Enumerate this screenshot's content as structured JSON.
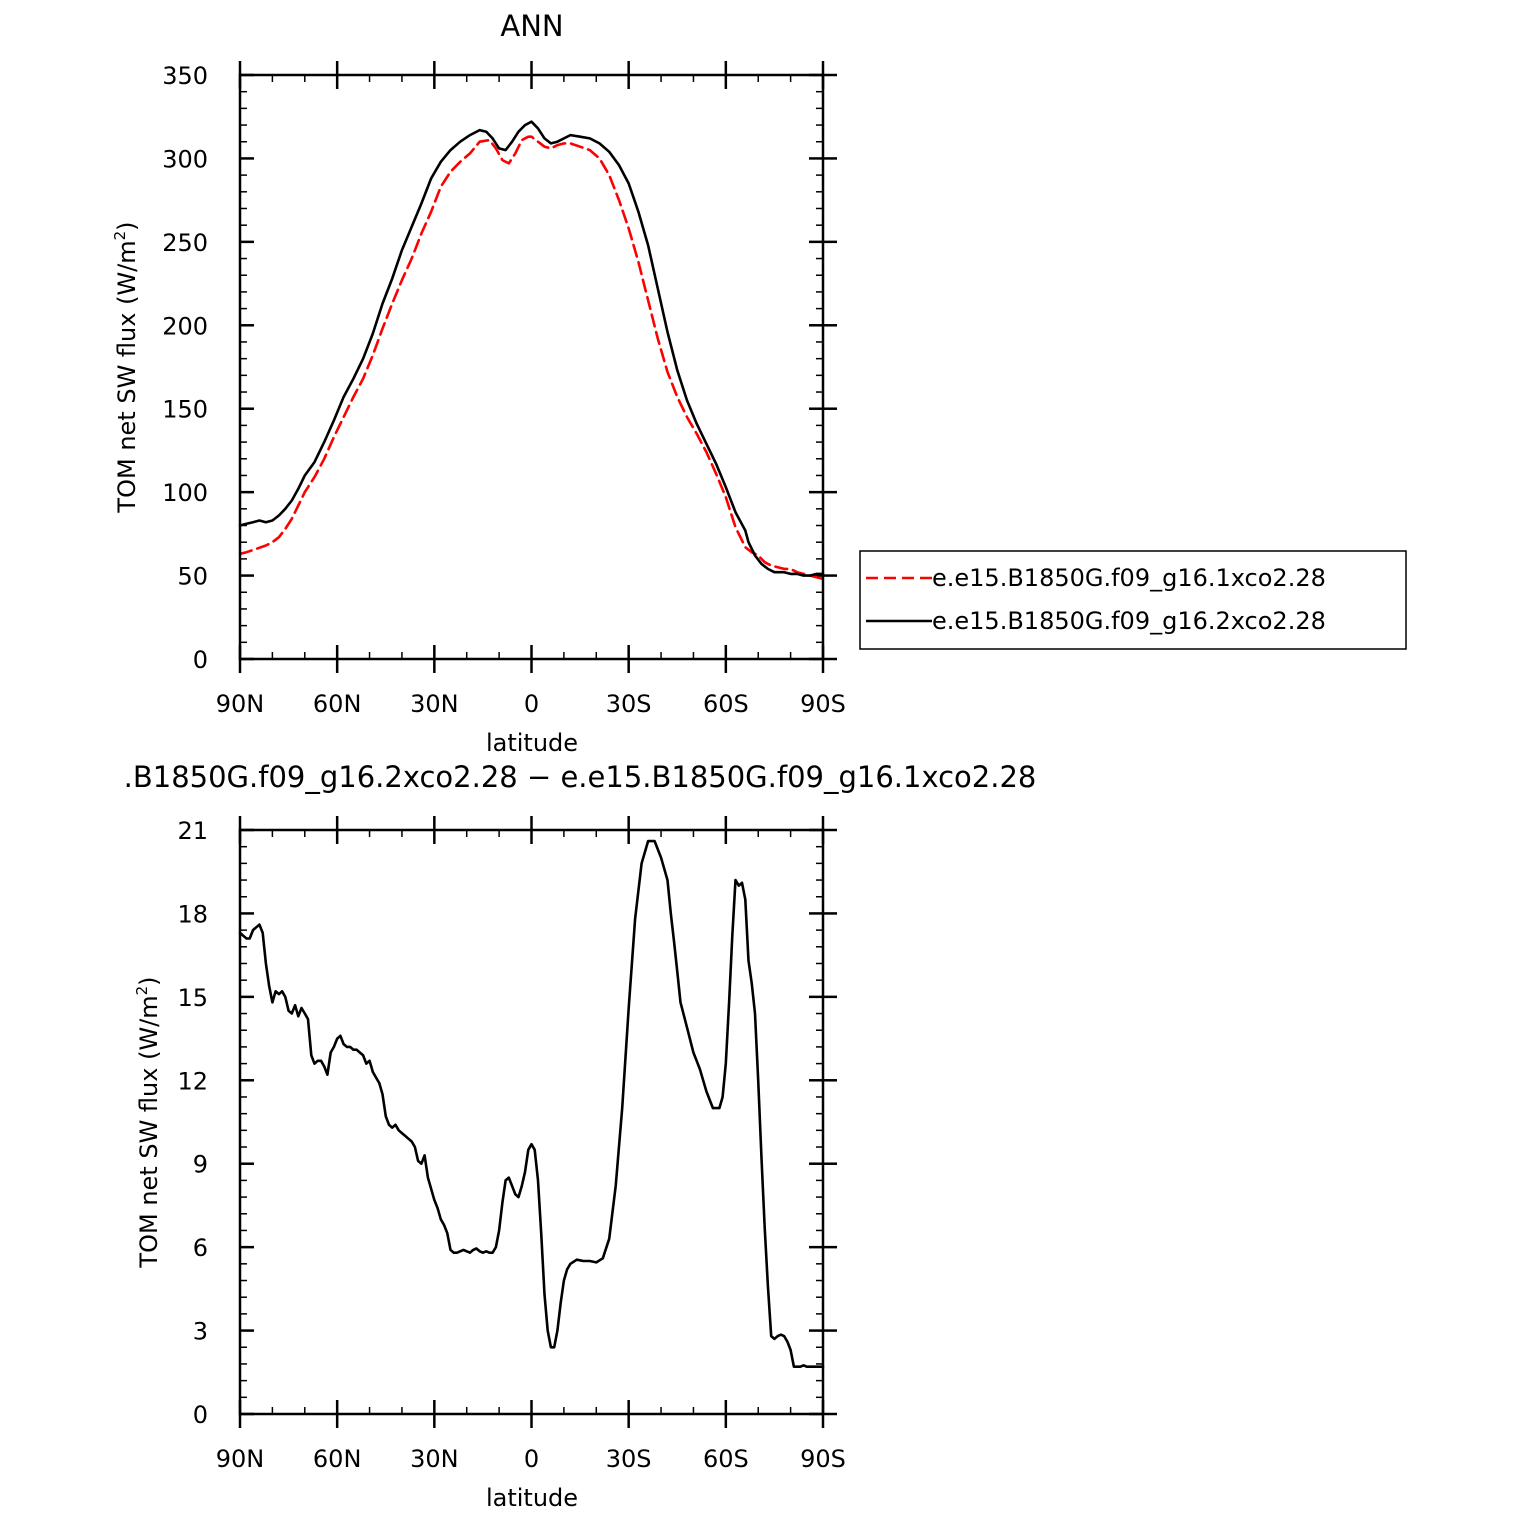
{
  "chart_data": [
    {
      "type": "line",
      "title": "ANN",
      "xlabel": "latitude",
      "ylabel": "TOM net SW flux (W/m",
      "ylabel_sup": "2",
      "ylabel_end": ")",
      "xlim": [
        90,
        -90
      ],
      "ylim": [
        0,
        350
      ],
      "x_ticks": [
        90,
        60,
        30,
        0,
        -30,
        -60,
        -90
      ],
      "x_tick_labels": [
        "90N",
        "60N",
        "30N",
        "0",
        "30S",
        "60S",
        "90S"
      ],
      "y_ticks": [
        0,
        50,
        100,
        150,
        200,
        250,
        300,
        350
      ],
      "y_tick_labels": [
        "0",
        "50",
        "100",
        "150",
        "200",
        "250",
        "300",
        "350"
      ],
      "legend_position": "right",
      "series": [
        {
          "name": "e.e15.B1850G.f09_g16.1xco2.28",
          "color": "#ff0000",
          "dash": "dashed",
          "x": [
            90,
            88,
            85,
            82,
            80,
            78,
            76,
            74,
            72,
            70,
            67,
            64,
            61,
            58,
            55,
            52,
            49,
            46,
            43,
            40,
            37,
            34,
            31,
            28,
            25,
            22,
            19,
            16,
            13,
            11,
            9,
            7,
            5,
            3,
            1,
            0,
            -2,
            -4,
            -6,
            -8,
            -10,
            -12,
            -15,
            -18,
            -21,
            -24,
            -27,
            -30,
            -33,
            -36,
            -39,
            -42,
            -45,
            -48,
            -51,
            -54,
            -57,
            -60,
            -63,
            -66,
            -68,
            -70,
            -72,
            -74,
            -76,
            -78,
            -80,
            -82,
            -84,
            -86,
            -88,
            -90
          ],
          "values": [
            63,
            64,
            66,
            68,
            70,
            73,
            78,
            84,
            92,
            100,
            109,
            120,
            133,
            145,
            157,
            168,
            182,
            198,
            213,
            227,
            240,
            255,
            268,
            283,
            292,
            298,
            303,
            310,
            311,
            306,
            299,
            297,
            303,
            311,
            313,
            313,
            310,
            307,
            306,
            308,
            309,
            309,
            307,
            305,
            300,
            290,
            275,
            258,
            238,
            215,
            192,
            172,
            157,
            145,
            135,
            124,
            111,
            97,
            79,
            67,
            64,
            62,
            58,
            56,
            55,
            54,
            54,
            52,
            51,
            50,
            49,
            48
          ]
        },
        {
          "name": "e.e15.B1850G.f09_g16.2xco2.28",
          "color": "#000000",
          "dash": "solid",
          "x": [
            90,
            88,
            86,
            84,
            82,
            80,
            78,
            76,
            74,
            72,
            70,
            67,
            64,
            61,
            58,
            55,
            52,
            49,
            46,
            43,
            40,
            37,
            34,
            31,
            28,
            25,
            22,
            19,
            16,
            14,
            12,
            10,
            8,
            6,
            4,
            2,
            0,
            -2,
            -4,
            -6,
            -8,
            -10,
            -12,
            -15,
            -18,
            -21,
            -24,
            -27,
            -30,
            -33,
            -36,
            -39,
            -42,
            -45,
            -48,
            -51,
            -54,
            -57,
            -60,
            -63,
            -66,
            -67,
            -69,
            -71,
            -73,
            -75,
            -77,
            -78,
            -80,
            -82,
            -84,
            -86,
            -88,
            -90
          ],
          "values": [
            80,
            81,
            82,
            83,
            82,
            83,
            86,
            90,
            95,
            102,
            110,
            118,
            130,
            143,
            157,
            168,
            180,
            195,
            213,
            228,
            245,
            259,
            273,
            288,
            298,
            305,
            310,
            314,
            317,
            316,
            312,
            306,
            305,
            310,
            316,
            320,
            322,
            318,
            312,
            309,
            310,
            312,
            314,
            313,
            312,
            309,
            304,
            296,
            285,
            268,
            248,
            222,
            196,
            173,
            155,
            141,
            129,
            117,
            103,
            88,
            77,
            70,
            62,
            57,
            54,
            52,
            52,
            52,
            51,
            51,
            50,
            50,
            51,
            51
          ]
        }
      ]
    },
    {
      "type": "line",
      "title": ".B1850G.f09_g16.2xco2.28 − e.e15.B1850G.f09_g16.1xco2.28",
      "xlabel": "latitude",
      "ylabel": "TOM net SW flux (W/m",
      "ylabel_sup": "2",
      "ylabel_end": ")",
      "xlim": [
        90,
        -90
      ],
      "ylim": [
        0,
        21
      ],
      "x_ticks": [
        90,
        60,
        30,
        0,
        -30,
        -60,
        -90
      ],
      "x_tick_labels": [
        "90N",
        "60N",
        "30N",
        "0",
        "30S",
        "60S",
        "90S"
      ],
      "y_ticks": [
        0,
        3,
        6,
        9,
        12,
        15,
        18,
        21
      ],
      "y_tick_labels": [
        "0",
        "3",
        "6",
        "9",
        "12",
        "15",
        "18",
        "21"
      ],
      "series": [
        {
          "color": "#000000",
          "dash": "solid",
          "x": [
            90,
            89,
            88,
            87,
            86,
            85,
            84,
            83,
            82,
            81,
            80,
            79,
            78,
            77,
            76,
            75,
            74,
            73,
            72,
            71,
            70,
            69,
            68,
            67,
            66,
            65,
            64,
            63,
            62,
            61,
            60,
            59,
            58,
            57,
            56,
            55,
            54,
            53,
            52,
            51,
            50,
            49,
            48,
            47,
            46,
            45,
            44,
            43,
            42,
            41,
            40,
            39,
            38,
            37,
            36,
            35,
            34,
            33,
            32,
            31,
            30,
            29,
            28,
            27,
            26,
            25,
            24,
            23,
            22,
            21,
            20,
            19,
            18,
            17,
            16,
            15,
            14,
            13,
            12,
            11,
            10,
            9,
            8,
            7,
            6,
            5,
            4,
            3,
            2,
            1,
            0,
            -1,
            -2,
            -3,
            -4,
            -5,
            -6,
            -7,
            -8,
            -9,
            -10,
            -11,
            -12,
            -14,
            -16,
            -18,
            -20,
            -22,
            -24,
            -26,
            -28,
            -30,
            -32,
            -34,
            -36,
            -38,
            -40,
            -42,
            -43,
            -44,
            -45,
            -46,
            -48,
            -50,
            -52,
            -54,
            -56,
            -58,
            -59,
            -60,
            -61,
            -62,
            -63,
            -64,
            -65,
            -66,
            -67,
            -68,
            -69,
            -70,
            -71,
            -72,
            -73,
            -74,
            -75,
            -76,
            -77,
            -78,
            -79,
            -80,
            -81,
            -82,
            -83,
            -84,
            -85,
            -86,
            -87,
            -88,
            -89,
            -90
          ],
          "values": [
            17.3,
            17.2,
            17.1,
            17.1,
            17.4,
            17.5,
            17.6,
            17.3,
            16.2,
            15.4,
            14.8,
            15.2,
            15.1,
            15.2,
            15.0,
            14.5,
            14.4,
            14.7,
            14.3,
            14.6,
            14.4,
            14.2,
            12.9,
            12.6,
            12.7,
            12.7,
            12.5,
            12.2,
            13.0,
            13.2,
            13.5,
            13.6,
            13.3,
            13.2,
            13.2,
            13.1,
            13.1,
            13.0,
            12.9,
            12.6,
            12.7,
            12.3,
            12.1,
            11.9,
            11.5,
            10.7,
            10.4,
            10.3,
            10.4,
            10.2,
            10.1,
            10.0,
            9.9,
            9.8,
            9.6,
            9.1,
            9.0,
            9.3,
            8.5,
            8.1,
            7.7,
            7.4,
            7.0,
            6.8,
            6.5,
            5.9,
            5.8,
            5.8,
            5.85,
            5.9,
            5.85,
            5.8,
            5.9,
            5.95,
            5.85,
            5.8,
            5.85,
            5.8,
            5.8,
            6.0,
            6.6,
            7.6,
            8.4,
            8.5,
            8.2,
            7.9,
            7.8,
            8.2,
            8.7,
            9.5,
            9.7,
            9.5,
            8.4,
            6.5,
            4.3,
            3.0,
            2.4,
            2.4,
            3.0,
            4.0,
            4.8,
            5.2,
            5.4,
            5.55,
            5.5,
            5.5,
            5.45,
            5.6,
            6.3,
            8.2,
            11.0,
            14.6,
            17.8,
            19.8,
            20.6,
            20.6,
            20.0,
            19.2,
            18.0,
            17.0,
            15.9,
            14.8,
            13.9,
            13.0,
            12.4,
            11.6,
            11.0,
            11.0,
            11.4,
            12.6,
            14.8,
            17.2,
            19.2,
            19.0,
            19.1,
            18.5,
            16.3,
            15.5,
            14.4,
            12.0,
            9.2,
            6.7,
            4.6,
            2.8,
            2.7,
            2.8,
            2.85,
            2.8,
            2.6,
            2.3,
            1.7,
            1.7,
            1.7,
            1.75,
            1.7,
            1.7,
            1.7,
            1.7,
            1.7,
            1.7
          ]
        }
      ]
    }
  ]
}
